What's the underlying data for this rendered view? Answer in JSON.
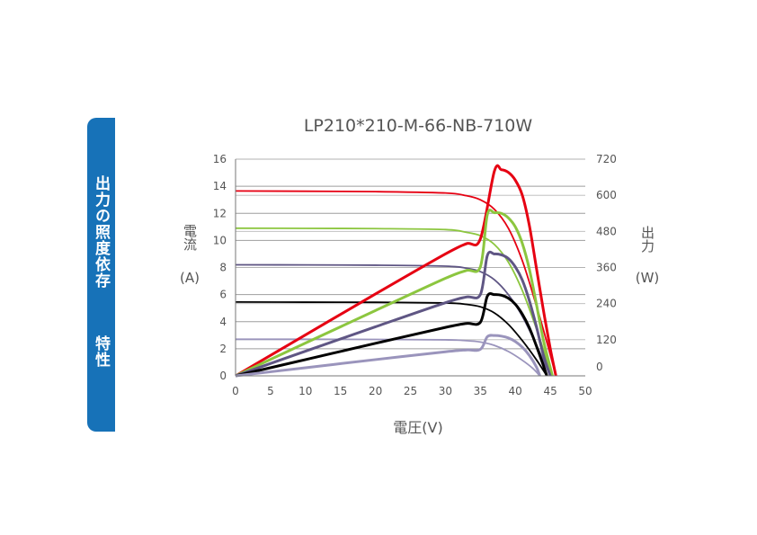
{
  "side_tab": {
    "line1": "出力の照度依存",
    "line2": "特性",
    "color": "#1772b8"
  },
  "chart_data": {
    "type": "line",
    "title": "LP210*210-M-66-NB-710W",
    "xlabel": "電圧(V)",
    "ylabel_left": "電流",
    "ylabel_left_unit": "(A)",
    "ylabel_right": "出力",
    "ylabel_right_unit": "(W)",
    "xlim": [
      0,
      50
    ],
    "ylim_left": [
      0,
      16
    ],
    "ylim_right": [
      0,
      720
    ],
    "x_ticks": [
      0,
      5,
      10,
      15,
      20,
      25,
      30,
      35,
      40,
      45,
      50
    ],
    "y_left_ticks": [
      0,
      2,
      4,
      6,
      8,
      10,
      12,
      14,
      16
    ],
    "y_right_ticks": [
      0,
      120,
      240,
      360,
      480,
      600,
      720
    ],
    "grid": "horizontal",
    "series": [
      {
        "color": "#e60012",
        "isc": 13.65,
        "voc": 45.8,
        "iv": [
          [
            0,
            13.65
          ],
          [
            10,
            13.63
          ],
          [
            20,
            13.6
          ],
          [
            30,
            13.5
          ],
          [
            33,
            13.3
          ],
          [
            35,
            13.0
          ],
          [
            37,
            12.3
          ],
          [
            39,
            10.9
          ],
          [
            41,
            8.5
          ],
          [
            43,
            5.2
          ],
          [
            44.5,
            2.5
          ],
          [
            45.8,
            0
          ]
        ],
        "power": [
          [
            0,
            0
          ],
          [
            10,
            136
          ],
          [
            20,
            272
          ],
          [
            30,
            405
          ],
          [
            33,
            439
          ],
          [
            35,
            455
          ],
          [
            37,
            680
          ],
          [
            38,
            685
          ],
          [
            39,
            676
          ],
          [
            40,
            650
          ],
          [
            41,
            600
          ],
          [
            42,
            500
          ],
          [
            43,
            360
          ],
          [
            44,
            220
          ],
          [
            45,
            90
          ],
          [
            45.8,
            0
          ]
        ]
      },
      {
        "color": "#8cc63f",
        "isc": 10.9,
        "voc": 45.3,
        "iv": [
          [
            0,
            10.9
          ],
          [
            10,
            10.89
          ],
          [
            20,
            10.87
          ],
          [
            30,
            10.8
          ],
          [
            33,
            10.6
          ],
          [
            35,
            10.35
          ],
          [
            37,
            9.7
          ],
          [
            39,
            8.4
          ],
          [
            41,
            6.3
          ],
          [
            43,
            3.5
          ],
          [
            44.3,
            1.5
          ],
          [
            45.3,
            0
          ]
        ],
        "power": [
          [
            0,
            0
          ],
          [
            10,
            109
          ],
          [
            20,
            217
          ],
          [
            30,
            324
          ],
          [
            33,
            350
          ],
          [
            35,
            362
          ],
          [
            36,
            536
          ],
          [
            37,
            542
          ],
          [
            38,
            540
          ],
          [
            39,
            525
          ],
          [
            40,
            495
          ],
          [
            41,
            440
          ],
          [
            42,
            355
          ],
          [
            43,
            240
          ],
          [
            44,
            120
          ],
          [
            45.3,
            0
          ]
        ]
      },
      {
        "color": "#5f5684",
        "isc": 8.2,
        "voc": 45.0,
        "iv": [
          [
            0,
            8.2
          ],
          [
            10,
            8.19
          ],
          [
            20,
            8.17
          ],
          [
            30,
            8.1
          ],
          [
            33,
            7.95
          ],
          [
            35,
            7.7
          ],
          [
            37,
            7.1
          ],
          [
            39,
            6.0
          ],
          [
            41,
            4.4
          ],
          [
            43,
            2.3
          ],
          [
            44.2,
            0.9
          ],
          [
            45.0,
            0
          ]
        ],
        "power": [
          [
            0,
            0
          ],
          [
            10,
            82
          ],
          [
            20,
            163
          ],
          [
            30,
            243
          ],
          [
            33,
            262
          ],
          [
            35,
            270
          ],
          [
            36,
            400
          ],
          [
            37,
            405
          ],
          [
            38,
            402
          ],
          [
            39,
            390
          ],
          [
            40,
            362
          ],
          [
            41,
            318
          ],
          [
            42,
            250
          ],
          [
            43,
            165
          ],
          [
            44,
            70
          ],
          [
            45.0,
            0
          ]
        ]
      },
      {
        "color": "#000000",
        "isc": 5.45,
        "voc": 44.5,
        "iv": [
          [
            0,
            5.45
          ],
          [
            10,
            5.44
          ],
          [
            20,
            5.43
          ],
          [
            30,
            5.38
          ],
          [
            33,
            5.28
          ],
          [
            35,
            5.1
          ],
          [
            37,
            4.65
          ],
          [
            39,
            3.8
          ],
          [
            41,
            2.6
          ],
          [
            43,
            1.2
          ],
          [
            44.5,
            0
          ]
        ],
        "power": [
          [
            0,
            0
          ],
          [
            10,
            54
          ],
          [
            20,
            108
          ],
          [
            30,
            161
          ],
          [
            33,
            174
          ],
          [
            35,
            178
          ],
          [
            36,
            265
          ],
          [
            37,
            270
          ],
          [
            38,
            268
          ],
          [
            39,
            258
          ],
          [
            40,
            238
          ],
          [
            41,
            205
          ],
          [
            42,
            160
          ],
          [
            43,
            100
          ],
          [
            44,
            35
          ],
          [
            44.5,
            0
          ]
        ]
      },
      {
        "color": "#9a94bc",
        "isc": 2.7,
        "voc": 43.5,
        "iv": [
          [
            0,
            2.7
          ],
          [
            10,
            2.7
          ],
          [
            20,
            2.69
          ],
          [
            30,
            2.66
          ],
          [
            33,
            2.6
          ],
          [
            35,
            2.5
          ],
          [
            37,
            2.25
          ],
          [
            39,
            1.8
          ],
          [
            41,
            1.15
          ],
          [
            42.5,
            0.55
          ],
          [
            43.5,
            0
          ]
        ],
        "power": [
          [
            0,
            0
          ],
          [
            10,
            27
          ],
          [
            20,
            54
          ],
          [
            30,
            80
          ],
          [
            33,
            86
          ],
          [
            35,
            88
          ],
          [
            36,
            130
          ],
          [
            37,
            134
          ],
          [
            38,
            132
          ],
          [
            39,
            126
          ],
          [
            40,
            114
          ],
          [
            41,
            95
          ],
          [
            42,
            68
          ],
          [
            43,
            30
          ],
          [
            43.5,
            0
          ]
        ]
      }
    ]
  }
}
